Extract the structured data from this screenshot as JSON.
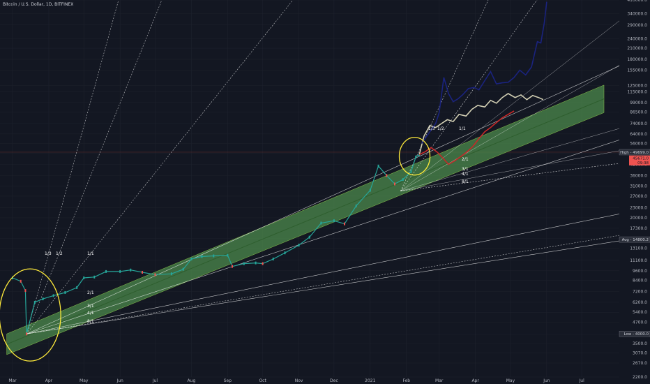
{
  "header": {
    "title": "Bitcoin / U.S. Dollar, 1D, BITFINEX"
  },
  "chart_data": {
    "type": "line",
    "scale": "log",
    "ylim": [
      2200,
      410000
    ],
    "xlim": [
      "2020-03-01",
      "2021-07-20"
    ],
    "yticks": [
      2200,
      2670,
      3070,
      3500,
      4000,
      4700,
      5400,
      6200,
      7200,
      8400,
      9600,
      11100,
      13100,
      15000,
      17300,
      20000,
      23000,
      27000,
      31000,
      36000,
      42000,
      49000,
      56000,
      64000,
      74000,
      86500,
      99000,
      115000,
      125000,
      155000,
      180000,
      210000,
      240000,
      290000,
      340000,
      410000
    ],
    "ytick_labels": [
      "2200.0",
      "2670.0",
      "3070.0",
      "3500.0",
      "4000.0",
      "4700.0",
      "5400.0",
      "6200.0",
      "7200.0",
      "8400.0",
      "9600.0",
      "11100.0",
      "13100.0",
      "15000.0",
      "17300.0",
      "20000.0",
      "23000.0",
      "27000.0",
      "31000.0",
      "36000.0",
      "42000.0",
      "49000.0",
      "56000.0",
      "64000.0",
      "74000.0",
      "86500.0",
      "99000.0",
      "115000.0",
      "125000.0",
      "155000.0",
      "180000.0",
      "210000.0",
      "240000.0",
      "290000.0",
      "340000.0",
      "410000.0"
    ],
    "xticks": [
      {
        "label": "Mar",
        "date": "2020-03-01"
      },
      {
        "label": "Apr",
        "date": "2020-04-01"
      },
      {
        "label": "May",
        "date": "2020-05-01"
      },
      {
        "label": "Jun",
        "date": "2020-06-01"
      },
      {
        "label": "Jul",
        "date": "2020-07-01"
      },
      {
        "label": "Aug",
        "date": "2020-08-01"
      },
      {
        "label": "Sep",
        "date": "2020-09-01"
      },
      {
        "label": "Oct",
        "date": "2020-10-01"
      },
      {
        "label": "Nov",
        "date": "2020-11-01"
      },
      {
        "label": "Dec",
        "date": "2020-12-01"
      },
      {
        "label": "2021",
        "date": "2021-01-01"
      },
      {
        "label": "Feb",
        "date": "2021-02-01"
      },
      {
        "label": "Mar",
        "date": "2021-03-01"
      },
      {
        "label": "Apr",
        "date": "2021-04-01"
      },
      {
        "label": "May",
        "date": "2021-05-01"
      },
      {
        "label": "Jun",
        "date": "2021-06-01"
      },
      {
        "label": "Jul",
        "date": "2021-07-01"
      }
    ],
    "series": [
      {
        "role": "price",
        "color": "#26a69a",
        "x": [
          "2020-03-01",
          "2020-03-08",
          "2020-03-12",
          "2020-03-13",
          "2020-03-20",
          "2020-03-27",
          "2020-04-05",
          "2020-04-15",
          "2020-04-25",
          "2020-05-01",
          "2020-05-10",
          "2020-05-20",
          "2020-06-01",
          "2020-06-10",
          "2020-06-20",
          "2020-07-01",
          "2020-07-15",
          "2020-07-25",
          "2020-08-01",
          "2020-08-10",
          "2020-08-20",
          "2020-09-01",
          "2020-09-05",
          "2020-09-15",
          "2020-09-25",
          "2020-10-01",
          "2020-10-10",
          "2020-10-20",
          "2020-11-01",
          "2020-11-10",
          "2020-11-20",
          "2020-12-01",
          "2020-12-10",
          "2020-12-20",
          "2021-01-01",
          "2021-01-08",
          "2021-01-15",
          "2021-01-22",
          "2021-01-29",
          "2021-02-05",
          "2021-02-09",
          "2021-02-12"
        ],
        "y": [
          8700,
          8300,
          7300,
          4000,
          6200,
          6500,
          6800,
          7100,
          7600,
          8700,
          8800,
          9500,
          9500,
          9700,
          9400,
          9100,
          9200,
          9800,
          11300,
          11700,
          11800,
          11900,
          10200,
          10600,
          10700,
          10600,
          11300,
          12300,
          13700,
          15300,
          18600,
          19200,
          18400,
          23600,
          29300,
          41000,
          36000,
          32000,
          34000,
          38000,
          46500,
          48000
        ]
      },
      {
        "role": "projection",
        "color": "#d2cfb4",
        "x": [
          "2021-02-12",
          "2021-02-16",
          "2021-02-21",
          "2021-02-26",
          "2021-03-03",
          "2021-03-08",
          "2021-03-13",
          "2021-03-18",
          "2021-03-24",
          "2021-03-29",
          "2021-04-03",
          "2021-04-09",
          "2021-04-14",
          "2021-04-19",
          "2021-04-24",
          "2021-04-29",
          "2021-05-05",
          "2021-05-10",
          "2021-05-15",
          "2021-05-20",
          "2021-05-25",
          "2021-05-29"
        ],
        "y": [
          48000,
          62000,
          72000,
          70000,
          74000,
          78000,
          76000,
          84000,
          82000,
          90000,
          95000,
          93000,
          102000,
          98000,
          106000,
          112000,
          106000,
          110000,
          103000,
          109000,
          106000,
          103000
        ]
      },
      {
        "role": "projection",
        "color": "#1a237e",
        "x": [
          "2021-02-14",
          "2021-02-21",
          "2021-02-26",
          "2021-03-01",
          "2021-03-05",
          "2021-03-09",
          "2021-03-13",
          "2021-03-17",
          "2021-03-21",
          "2021-03-26",
          "2021-03-31",
          "2021-04-04",
          "2021-04-09",
          "2021-04-14",
          "2021-04-19",
          "2021-04-24",
          "2021-04-29",
          "2021-05-04",
          "2021-05-09",
          "2021-05-14",
          "2021-05-19",
          "2021-05-24",
          "2021-05-27",
          "2021-05-30",
          "2021-06-01"
        ],
        "y": [
          56000,
          66000,
          74000,
          86000,
          140000,
          112000,
          100000,
          104000,
          110000,
          120000,
          122000,
          118000,
          134000,
          152000,
          128000,
          130000,
          131000,
          140000,
          155000,
          145000,
          162000,
          230000,
          226000,
          300000,
          400000
        ]
      },
      {
        "role": "projection",
        "color": "#c62828",
        "x": [
          "2021-02-12",
          "2021-02-17",
          "2021-02-22",
          "2021-02-27",
          "2021-03-04",
          "2021-03-09",
          "2021-03-14",
          "2021-03-20",
          "2021-03-25",
          "2021-03-30",
          "2021-04-04",
          "2021-04-09",
          "2021-04-14",
          "2021-04-19",
          "2021-04-24",
          "2021-04-29",
          "2021-05-04"
        ],
        "y": [
          48000,
          50000,
          53000,
          50000,
          46000,
          42000,
          44000,
          47000,
          50000,
          54000,
          60000,
          66000,
          70000,
          75000,
          80000,
          84000,
          88000
        ]
      }
    ],
    "channel": {
      "color": "#4c8a4c",
      "start": {
        "x": "2020-02-25",
        "y_low": 3000,
        "y_high": 4000
      },
      "end": {
        "x": "2021-07-20",
        "y_low": 86000,
        "y_high": 126000
      }
    },
    "fan_labels": [
      "1/3",
      "1/2",
      "1/1",
      "2/1",
      "3/1",
      "4/1",
      "8/1"
    ],
    "fan_labels_2021": [
      "1/3",
      "1/2",
      "1/1",
      "2/1",
      "3/1",
      "4/1",
      "8/1"
    ],
    "price_badges": [
      {
        "label": "High",
        "value": "49699.0",
        "y": 49699,
        "color": "#b2b5be"
      },
      {
        "label": "",
        "value": "45671.0",
        "y": 45671,
        "color": "#ef5350"
      },
      {
        "label": "",
        "value": "09:38",
        "y": 43000,
        "color": "#ef5350"
      },
      {
        "label": "Avg",
        "value": "14800.2",
        "y": 14800,
        "color": "#b2b5be"
      },
      {
        "label": "Low",
        "value": "4000.0",
        "y": 4000,
        "color": "#b2b5be"
      }
    ],
    "colors": {
      "background": "#131722",
      "grid": "#1e222d",
      "circle": "#ffeb3b",
      "fan": "#ffffff"
    }
  }
}
